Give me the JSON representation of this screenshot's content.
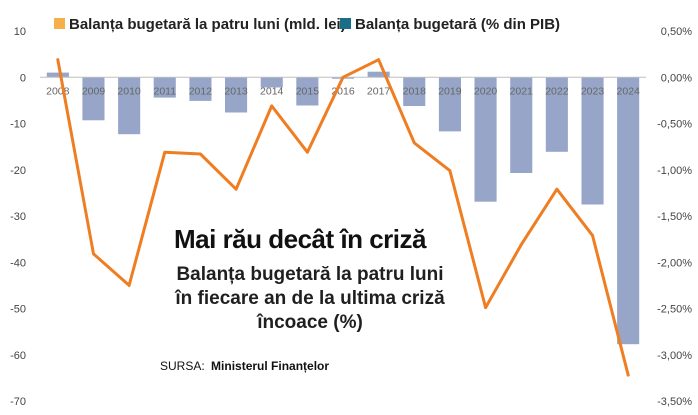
{
  "chart_data": {
    "type": "bar",
    "title": "Mai rău decât în criză",
    "subtitle_lines": [
      "Balanța bugetară la patru luni",
      "în fiecare an de la ultima criză",
      "încoace (%)"
    ],
    "source_label": "SURSA:",
    "source_name": "Ministerul Finanțelor",
    "categories": [
      "2008",
      "2009",
      "2010",
      "2011",
      "2012",
      "2013",
      "2014",
      "2015",
      "2016",
      "2017",
      "2018",
      "2019",
      "2020",
      "2021",
      "2022",
      "2023",
      "2024"
    ],
    "series": [
      {
        "name": "Balanța bugetară la patru luni (mld. lei)",
        "type": "bar",
        "axis": "left",
        "color": "#f5b04a",
        "values": [
          1.0,
          -9.3,
          -12.3,
          -4.4,
          -5.1,
          -7.6,
          -2.2,
          -6.1,
          -0.3,
          1.2,
          -6.2,
          -11.7,
          -26.9,
          -20.7,
          -16.1,
          -27.5,
          -57.7
        ]
      },
      {
        "name": "Balanța bugetară (% din PIB)",
        "type": "line",
        "axis": "right",
        "color": "#ef7d22",
        "values": [
          0.19,
          -1.91,
          -2.25,
          -0.81,
          -0.83,
          -1.21,
          -0.31,
          -0.81,
          0.0,
          0.19,
          -0.71,
          -1.01,
          -2.49,
          -1.81,
          -1.21,
          -1.71,
          -3.22
        ]
      }
    ],
    "bar_color": "#97a6c8",
    "legend_bar_color": "#1a6e87",
    "left_axis": {
      "min": -70,
      "max": 10,
      "ticks": [
        "10",
        "0",
        "-10",
        "-20",
        "-30",
        "-40",
        "-50",
        "-60",
        "-70"
      ]
    },
    "right_axis": {
      "min": -3.5,
      "max": 0.5,
      "ticks": [
        "0,50%",
        "0,00%",
        "-0,50%",
        "-1,00%",
        "-1,50%",
        "-2,00%",
        "-2,50%",
        "-3,00%",
        "-3,50%"
      ]
    },
    "legend": "top",
    "grid": false
  }
}
